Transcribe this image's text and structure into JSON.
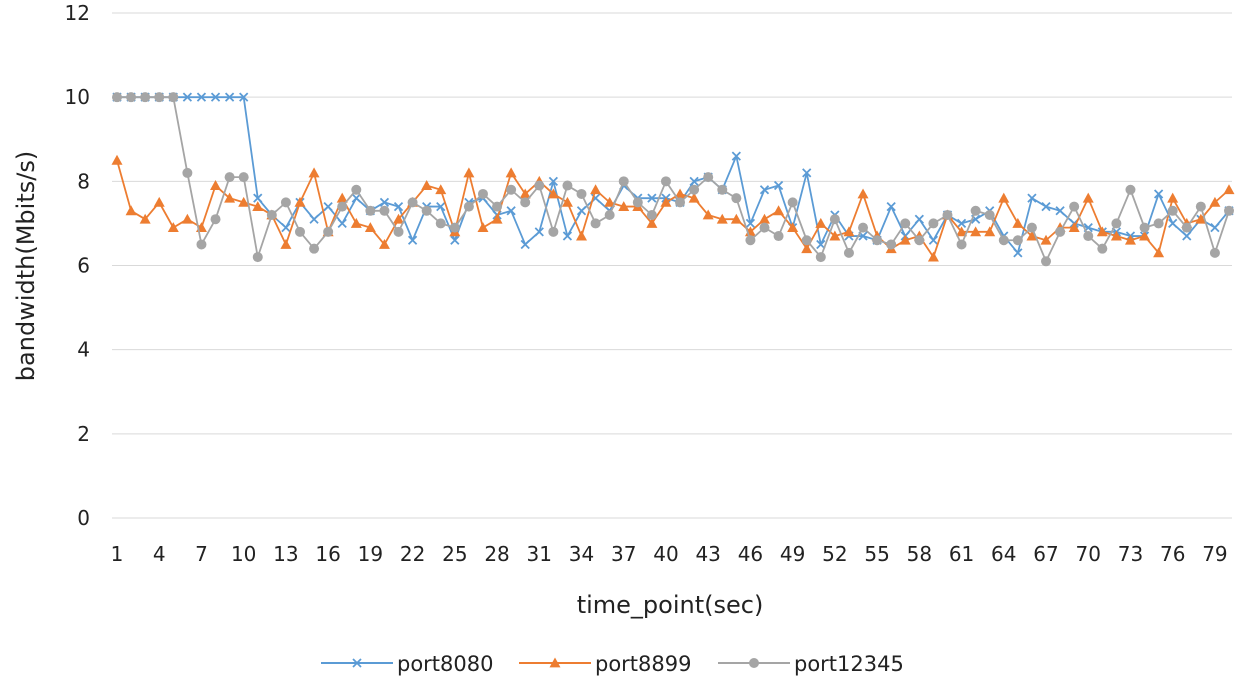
{
  "chart_data": {
    "type": "line",
    "title": "",
    "xlabel": "time_point(sec)",
    "ylabel": "bandwidth(Mbits/s)",
    "ylim": [
      0,
      12
    ],
    "yticks": [
      0,
      2,
      4,
      6,
      8,
      10,
      12
    ],
    "x": [
      1,
      2,
      3,
      4,
      5,
      6,
      7,
      8,
      9,
      10,
      11,
      12,
      13,
      14,
      15,
      16,
      17,
      18,
      19,
      20,
      21,
      22,
      23,
      24,
      25,
      26,
      27,
      28,
      29,
      30,
      31,
      32,
      33,
      34,
      35,
      36,
      37,
      38,
      39,
      40,
      41,
      42,
      43,
      44,
      45,
      46,
      47,
      48,
      49,
      50,
      51,
      52,
      53,
      54,
      55,
      56,
      57,
      58,
      59,
      60,
      61,
      62,
      63,
      64,
      65,
      66,
      67,
      68,
      69,
      70,
      71,
      72,
      73,
      74,
      75,
      76,
      77,
      78,
      79,
      80
    ],
    "xtick_labels": [
      "1",
      "4",
      "7",
      "10",
      "13",
      "16",
      "19",
      "22",
      "25",
      "28",
      "31",
      "34",
      "37",
      "40",
      "43",
      "46",
      "49",
      "52",
      "55",
      "58",
      "61",
      "64",
      "67",
      "70",
      "73",
      "76",
      "79"
    ],
    "grid": true,
    "legend_position": "bottom",
    "series": [
      {
        "name": "port8080",
        "color": "#5b9bd5",
        "marker": "x",
        "values": [
          10,
          10,
          10,
          10,
          10,
          10,
          10,
          10,
          10,
          10,
          7.6,
          7.2,
          6.9,
          7.5,
          7.1,
          7.4,
          7.0,
          7.6,
          7.3,
          7.5,
          7.4,
          6.6,
          7.4,
          7.4,
          6.6,
          7.5,
          7.6,
          7.2,
          7.3,
          6.5,
          6.8,
          8.0,
          6.7,
          7.3,
          7.6,
          7.3,
          7.9,
          7.6,
          7.6,
          7.6,
          7.5,
          8.0,
          8.1,
          7.8,
          8.6,
          7.0,
          7.8,
          7.9,
          6.9,
          8.2,
          6.5,
          7.2,
          6.7,
          6.7,
          6.6,
          7.4,
          6.7,
          7.1,
          6.6,
          7.2,
          7.0,
          7.1,
          7.3,
          6.7,
          6.3,
          7.6,
          7.4,
          7.3,
          7.0,
          6.9,
          6.8,
          6.8,
          6.7,
          6.7,
          7.7,
          7.0,
          6.7,
          7.1,
          6.9,
          7.3
        ]
      },
      {
        "name": "port8899",
        "color": "#ed7d31",
        "marker": "triangle",
        "values": [
          8.5,
          7.3,
          7.1,
          7.5,
          6.9,
          7.1,
          6.9,
          7.9,
          7.6,
          7.5,
          7.4,
          7.2,
          6.5,
          7.5,
          8.2,
          6.8,
          7.6,
          7.0,
          6.9,
          6.5,
          7.1,
          7.5,
          7.9,
          7.8,
          6.8,
          8.2,
          6.9,
          7.1,
          8.2,
          7.7,
          8.0,
          7.7,
          7.5,
          6.7,
          7.8,
          7.5,
          7.4,
          7.4,
          7.0,
          7.5,
          7.7,
          7.6,
          7.2,
          7.1,
          7.1,
          6.8,
          7.1,
          7.3,
          6.9,
          6.4,
          7.0,
          6.7,
          6.8,
          7.7,
          6.7,
          6.4,
          6.6,
          6.7,
          6.2,
          7.2,
          6.8,
          6.8,
          6.8,
          7.6,
          7.0,
          6.7,
          6.6,
          6.9,
          6.9,
          7.6,
          6.8,
          6.7,
          6.6,
          6.7,
          6.3,
          7.6,
          7.0,
          7.1,
          7.5,
          7.8
        ]
      },
      {
        "name": "port12345",
        "color": "#a5a5a5",
        "marker": "circle",
        "values": [
          10,
          10,
          10,
          10,
          10,
          8.2,
          6.5,
          7.1,
          8.1,
          8.1,
          6.2,
          7.2,
          7.5,
          6.8,
          6.4,
          6.8,
          7.4,
          7.8,
          7.3,
          7.3,
          6.8,
          7.5,
          7.3,
          7.0,
          6.9,
          7.4,
          7.7,
          7.4,
          7.8,
          7.5,
          7.9,
          6.8,
          7.9,
          7.7,
          7.0,
          7.2,
          8.0,
          7.5,
          7.2,
          8.0,
          7.5,
          7.8,
          8.1,
          7.8,
          7.6,
          6.6,
          6.9,
          6.7,
          7.5,
          6.6,
          6.2,
          7.1,
          6.3,
          6.9,
          6.6,
          6.5,
          7.0,
          6.6,
          7.0,
          7.2,
          6.5,
          7.3,
          7.2,
          6.6,
          6.6,
          6.9,
          6.1,
          6.8,
          7.4,
          6.7,
          6.4,
          7.0,
          7.8,
          6.9,
          7.0,
          7.3,
          6.9,
          7.4,
          6.3,
          7.3
        ]
      }
    ]
  }
}
